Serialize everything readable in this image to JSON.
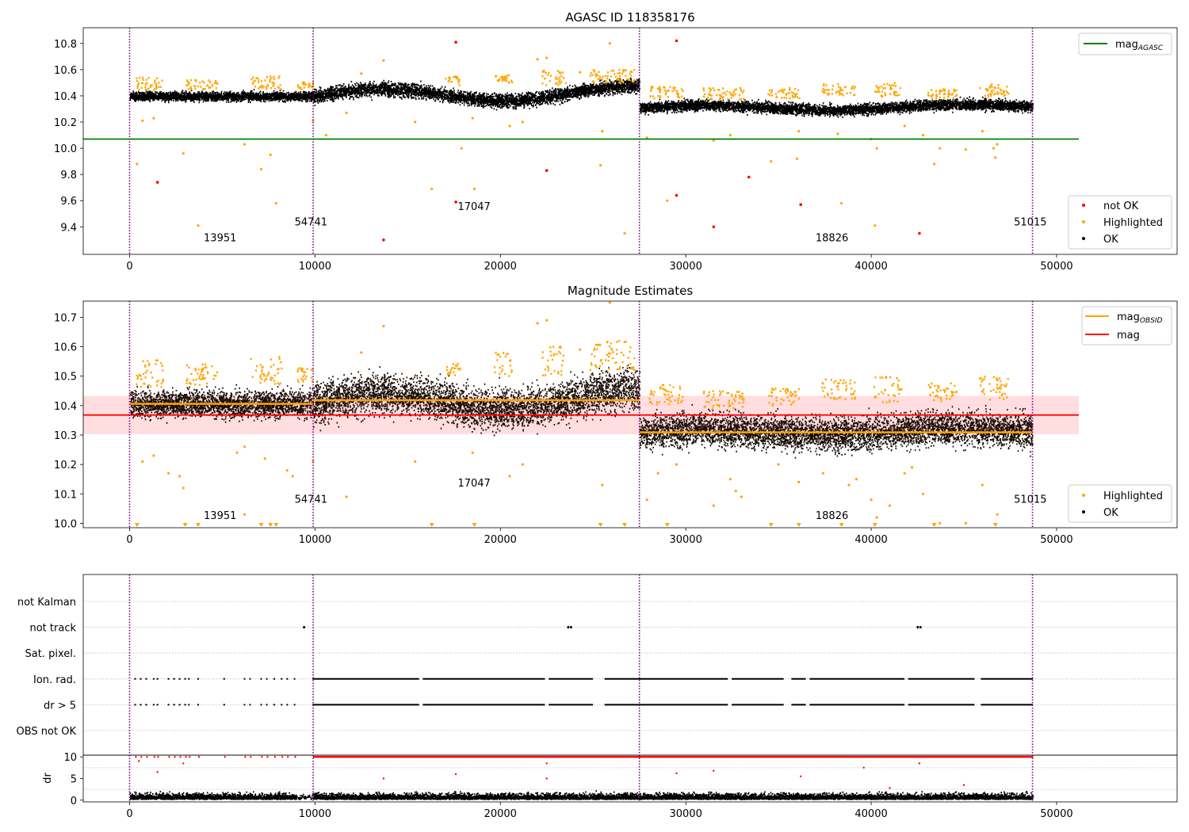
{
  "colors": {
    "ok": "#000000",
    "highlighted": "#ffa500",
    "not_ok": "#ff0000",
    "agasc_line": "#008000",
    "obsid_line": "#ffa500",
    "mag_line": "#ff0000",
    "mag_band": "#ffdde0",
    "obs_boundary": "#800080",
    "flag_grid": "#bbbbbb"
  },
  "chart_data": [
    {
      "id": "top",
      "type": "scatter",
      "title": "AGASC ID 118358176",
      "xlim": [
        -2500,
        56500
      ],
      "ylim": [
        9.19,
        10.92
      ],
      "xticks": [
        0,
        10000,
        20000,
        30000,
        40000,
        50000
      ],
      "yticks": [
        9.4,
        9.6,
        9.8,
        10.0,
        10.2,
        10.4,
        10.6,
        10.8
      ],
      "ytick_labels": [
        "9.4",
        "9.6",
        "9.8",
        "10.0",
        "10.2",
        "10.4",
        "10.6",
        "10.8"
      ],
      "legend_position": "top-right and bottom-right",
      "legend_upper": [
        {
          "label": "mag",
          "sub": "AGASC",
          "kind": "line",
          "color": "#008000"
        }
      ],
      "legend_lower": [
        {
          "label": "not OK",
          "kind": "dot",
          "color": "#ff0000"
        },
        {
          "label": "Highlighted",
          "kind": "dot",
          "color": "#ffa500"
        },
        {
          "label": "OK",
          "kind": "dot",
          "color": "#000000"
        }
      ],
      "mag_agasc": 10.07,
      "mag_agasc_xrange": [
        -2500,
        51200
      ],
      "obs_boundaries": [
        0,
        9900,
        27500,
        48700
      ],
      "obs_labels": [
        {
          "text": "13951",
          "x": 4000,
          "y": 9.29
        },
        {
          "text": "54741",
          "x": 8900,
          "y": 9.41
        },
        {
          "text": "17047",
          "x": 17700,
          "y": 9.53
        },
        {
          "text": "18826",
          "x": 37000,
          "y": 9.29
        },
        {
          "text": "51015",
          "x": 47700,
          "y": 9.41
        }
      ],
      "segments": [
        {
          "x": [
            0,
            9900
          ],
          "center": 10.395,
          "spread": 0.03,
          "amp": 0
        },
        {
          "x": [
            9900,
            27500
          ],
          "center": 10.41,
          "spread": 0.045,
          "amp": 0.05
        },
        {
          "x": [
            27500,
            48700
          ],
          "center": 10.31,
          "spread": 0.035,
          "amp": 0.02
        }
      ],
      "not_ok_points": [
        [
          1500,
          9.74
        ],
        [
          13700,
          9.3
        ],
        [
          17600,
          10.81
        ],
        [
          17600,
          9.59
        ],
        [
          22500,
          9.83
        ],
        [
          29500,
          10.82
        ],
        [
          29500,
          9.64
        ],
        [
          31500,
          9.4
        ],
        [
          33400,
          9.78
        ],
        [
          36200,
          9.57
        ],
        [
          42600,
          9.35
        ]
      ],
      "highlighted_points": [
        [
          400,
          9.88
        ],
        [
          700,
          10.21
        ],
        [
          1300,
          10.23
        ],
        [
          2900,
          9.96
        ],
        [
          3700,
          9.41
        ],
        [
          6200,
          10.03
        ],
        [
          7100,
          9.84
        ],
        [
          7600,
          9.95
        ],
        [
          7900,
          9.58
        ],
        [
          9900,
          10.21
        ],
        [
          10600,
          10.1
        ],
        [
          11700,
          10.27
        ],
        [
          12500,
          10.57
        ],
        [
          13700,
          10.67
        ],
        [
          15400,
          10.2
        ],
        [
          16300,
          9.69
        ],
        [
          17900,
          10.0
        ],
        [
          18500,
          10.23
        ],
        [
          18600,
          9.69
        ],
        [
          20500,
          10.17
        ],
        [
          21200,
          10.2
        ],
        [
          22000,
          10.68
        ],
        [
          22500,
          10.69
        ],
        [
          24300,
          10.58
        ],
        [
          25400,
          9.87
        ],
        [
          25500,
          10.13
        ],
        [
          25900,
          10.8
        ],
        [
          26700,
          9.35
        ],
        [
          27900,
          10.08
        ],
        [
          29000,
          9.6
        ],
        [
          31500,
          10.06
        ],
        [
          32400,
          10.1
        ],
        [
          34600,
          9.9
        ],
        [
          36000,
          9.92
        ],
        [
          36100,
          10.13
        ],
        [
          38200,
          10.11
        ],
        [
          38400,
          9.58
        ],
        [
          40000,
          10.07
        ],
        [
          40200,
          9.41
        ],
        [
          40300,
          10.0
        ],
        [
          41800,
          10.17
        ],
        [
          42800,
          10.1
        ],
        [
          43400,
          9.88
        ],
        [
          43700,
          10.0
        ],
        [
          45100,
          9.99
        ],
        [
          46000,
          10.13
        ],
        [
          46600,
          10.0
        ],
        [
          46700,
          9.93
        ],
        [
          46800,
          10.03
        ]
      ],
      "highlight_ranges": [
        [
          300,
          1800,
          10.44,
          10.54
        ],
        [
          3000,
          4700,
          10.45,
          10.52
        ],
        [
          6500,
          8200,
          10.45,
          10.55
        ],
        [
          9000,
          9900,
          10.45,
          10.51
        ],
        [
          17000,
          17800,
          10.48,
          10.55
        ],
        [
          19600,
          20600,
          10.5,
          10.56
        ],
        [
          22200,
          23500,
          10.48,
          10.6
        ],
        [
          24800,
          27200,
          10.5,
          10.6
        ],
        [
          28000,
          29800,
          10.38,
          10.47
        ],
        [
          30900,
          33100,
          10.37,
          10.46
        ],
        [
          34400,
          36100,
          10.38,
          10.46
        ],
        [
          37300,
          39100,
          10.4,
          10.49
        ],
        [
          40100,
          41600,
          10.39,
          10.5
        ],
        [
          43000,
          44600,
          10.38,
          10.45
        ],
        [
          45800,
          47400,
          10.39,
          10.49
        ]
      ]
    },
    {
      "id": "middle",
      "type": "scatter",
      "title": "Magnitude Estimates",
      "xlim": [
        -2500,
        56500
      ],
      "ylim": [
        9.985,
        10.755
      ],
      "xticks": [
        0,
        10000,
        20000,
        30000,
        40000,
        50000
      ],
      "yticks": [
        10.0,
        10.1,
        10.2,
        10.3,
        10.4,
        10.5,
        10.6,
        10.7
      ],
      "ytick_labels": [
        "10.0",
        "10.1",
        "10.2",
        "10.3",
        "10.4",
        "10.5",
        "10.6",
        "10.7"
      ],
      "legend_position": "top-right and bottom-right",
      "legend_upper": [
        {
          "label": "mag",
          "sub": "OBSID",
          "kind": "line",
          "color": "#ffa500"
        },
        {
          "label": "mag",
          "kind": "line",
          "color": "#ff0000"
        }
      ],
      "legend_lower": [
        {
          "label": "Highlighted",
          "kind": "dot",
          "color": "#ffa500"
        },
        {
          "label": "OK",
          "kind": "dot",
          "color": "#000000"
        }
      ],
      "mag": 10.368,
      "mag_band": [
        10.303,
        10.433
      ],
      "mag_band_xrange": [
        -2500,
        51200
      ],
      "mag_obsid": [
        {
          "x": [
            0,
            9900
          ],
          "y": 10.406
        },
        {
          "x": [
            9900,
            27500
          ],
          "y": 10.418
        },
        {
          "x": [
            27500,
            48700
          ],
          "y": 10.309
        }
      ],
      "obs_boundaries": [
        0,
        9900,
        27500,
        48700
      ],
      "obs_labels": [
        {
          "text": "13951",
          "x": 4000,
          "y": 10.015
        },
        {
          "text": "54741",
          "x": 8900,
          "y": 10.07
        },
        {
          "text": "17047",
          "x": 17700,
          "y": 10.125
        },
        {
          "text": "18826",
          "x": 37000,
          "y": 10.015
        },
        {
          "text": "51015",
          "x": 47700,
          "y": 10.07
        }
      ],
      "segments": [
        {
          "x": [
            0,
            9900
          ],
          "center": 10.405,
          "spread": 0.04,
          "amp": 0
        },
        {
          "x": [
            9900,
            27500
          ],
          "center": 10.415,
          "spread": 0.06,
          "amp": 0.03
        },
        {
          "x": [
            27500,
            48700
          ],
          "center": 10.31,
          "spread": 0.05,
          "amp": 0.01
        }
      ],
      "highlighted_points": [
        [
          700,
          10.21
        ],
        [
          1300,
          10.23
        ],
        [
          2100,
          10.17
        ],
        [
          2700,
          10.16
        ],
        [
          2900,
          10.12
        ],
        [
          5800,
          10.24
        ],
        [
          6200,
          10.26
        ],
        [
          6200,
          10.03
        ],
        [
          7300,
          10.22
        ],
        [
          8500,
          10.18
        ],
        [
          8800,
          10.16
        ],
        [
          9900,
          10.21
        ],
        [
          11700,
          10.09
        ],
        [
          12500,
          10.58
        ],
        [
          13700,
          10.67
        ],
        [
          15400,
          10.21
        ],
        [
          18500,
          10.24
        ],
        [
          20500,
          10.16
        ],
        [
          21200,
          10.2
        ],
        [
          22000,
          10.68
        ],
        [
          22500,
          10.69
        ],
        [
          24300,
          10.59
        ],
        [
          25500,
          10.13
        ],
        [
          25900,
          10.75
        ],
        [
          27900,
          10.08
        ],
        [
          28500,
          10.17
        ],
        [
          29500,
          10.2
        ],
        [
          31500,
          10.06
        ],
        [
          32400,
          10.15
        ],
        [
          32700,
          10.11
        ],
        [
          33000,
          10.09
        ],
        [
          35000,
          10.2
        ],
        [
          36100,
          10.14
        ],
        [
          37400,
          10.17
        ],
        [
          38800,
          10.13
        ],
        [
          39200,
          10.15
        ],
        [
          40000,
          10.08
        ],
        [
          40300,
          10.02
        ],
        [
          41000,
          10.06
        ],
        [
          41800,
          10.17
        ],
        [
          42200,
          10.19
        ],
        [
          42800,
          10.1
        ],
        [
          43700,
          10.0
        ],
        [
          45100,
          10.0
        ],
        [
          46000,
          10.13
        ],
        [
          46800,
          10.03
        ]
      ],
      "down_markers": [
        400,
        3000,
        3700,
        7100,
        7600,
        7900,
        16300,
        18600,
        25400,
        26700,
        29000,
        34600,
        36100,
        38400,
        40200,
        43400,
        46700
      ],
      "highlight_ranges": [
        [
          300,
          1800,
          10.46,
          10.56
        ],
        [
          3000,
          4700,
          10.47,
          10.54
        ],
        [
          6500,
          8200,
          10.47,
          10.57
        ],
        [
          9000,
          9900,
          10.48,
          10.53
        ],
        [
          17000,
          17800,
          10.5,
          10.56
        ],
        [
          19600,
          20600,
          10.5,
          10.58
        ],
        [
          22200,
          23500,
          10.5,
          10.6
        ],
        [
          24800,
          27200,
          10.52,
          10.62
        ],
        [
          28000,
          29800,
          10.4,
          10.47
        ],
        [
          30900,
          33100,
          10.39,
          10.45
        ],
        [
          34400,
          36100,
          10.4,
          10.46
        ],
        [
          37300,
          39100,
          10.42,
          10.49
        ],
        [
          40100,
          41600,
          10.41,
          10.5
        ],
        [
          43000,
          44600,
          10.41,
          10.48
        ],
        [
          45800,
          47400,
          10.42,
          10.5
        ]
      ]
    },
    {
      "id": "flags",
      "type": "scatter",
      "xlim": [
        -2500,
        56500
      ],
      "categories": [
        "not Kalman",
        "not track",
        "Sat. pixel.",
        "Ion. rad.",
        "dr > 5",
        "OBS not OK"
      ],
      "obs_boundaries": [
        0,
        9900,
        27500,
        48700
      ],
      "not_track_points": [
        9400,
        23650,
        23800,
        42500,
        42650
      ],
      "flagged_rows": [
        "Ion. rad.",
        "dr > 5"
      ],
      "first_obs_flag_x": [
        300,
        600,
        900,
        1300,
        1500,
        2100,
        2400,
        2700,
        3000,
        3200,
        3700,
        5100,
        6200,
        6500,
        7100,
        7400,
        7800,
        8200,
        8500,
        8900
      ],
      "flag_gaps": [
        [
          15600,
          15800
        ],
        [
          22400,
          22600
        ],
        [
          25000,
          25600
        ],
        [
          32300,
          32500
        ],
        [
          35300,
          35700
        ],
        [
          36500,
          36700
        ],
        [
          41800,
          42000
        ],
        [
          45600,
          45900
        ]
      ]
    },
    {
      "id": "dr",
      "type": "scatter",
      "xlim": [
        -2500,
        56500
      ],
      "ylim": [
        -0.4,
        10.4
      ],
      "yticks": [
        0,
        5,
        10
      ],
      "ytick_labels": [
        "0",
        "5",
        "10"
      ],
      "minor_yticks": [
        2.5,
        7.5
      ],
      "xticks": [
        0,
        10000,
        20000,
        30000,
        40000,
        50000
      ],
      "ylabel": "dr",
      "obs_boundaries": [
        0,
        9900,
        27500,
        48700
      ],
      "clip_value": 10,
      "scattered_red": [
        [
          500,
          9.0
        ],
        [
          1500,
          6.5
        ],
        [
          2900,
          8.5
        ],
        [
          13700,
          5.0
        ],
        [
          17600,
          6.0
        ],
        [
          22500,
          5.0
        ],
        [
          22500,
          8.5
        ],
        [
          29500,
          6.2
        ],
        [
          31500,
          6.8
        ],
        [
          36200,
          5.5
        ],
        [
          39600,
          7.5
        ],
        [
          42600,
          8.5
        ],
        [
          45000,
          3.5
        ],
        [
          41000,
          2.8
        ]
      ]
    }
  ]
}
